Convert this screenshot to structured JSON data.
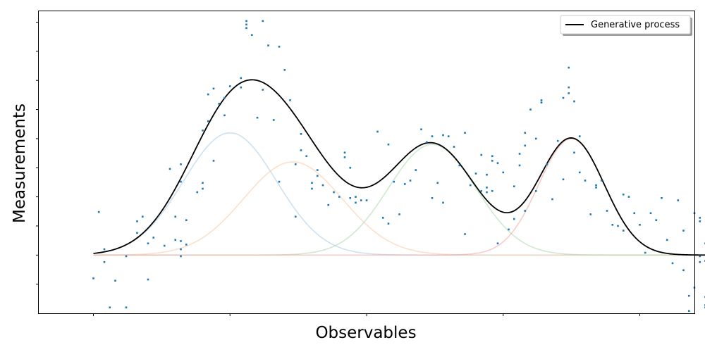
{
  "chart_data": {
    "type": "scatter",
    "xlabel": "Observables",
    "ylabel": "Measurements",
    "xlim": [
      -0.1,
      1.1
    ],
    "ylim": [
      -0.5,
      2.1
    ],
    "tick_labels_visible": false,
    "legend": {
      "entries": [
        "Generative process"
      ],
      "position": "top-right"
    },
    "colors": {
      "points": "#1f77b4",
      "process": "#000000",
      "components": [
        "#aecde3",
        "#fbc9a7",
        "#b0d9b0",
        "#f3a8a8"
      ]
    },
    "components": [
      {
        "weight": 1.05,
        "mean": 0.25,
        "sd": 0.085
      },
      {
        "weight": 0.8,
        "mean": 0.365,
        "sd": 0.09
      },
      {
        "weight": 0.95,
        "mean": 0.62,
        "sd": 0.08
      },
      {
        "weight": 1.0,
        "mean": 0.875,
        "sd": 0.06
      }
    ],
    "process_line": {
      "name": "Generative process",
      "x_range": [
        0,
        1.125
      ]
    },
    "points": [
      [
        0.0,
        -0.2
      ],
      [
        0.01,
        0.37
      ],
      [
        0.02,
        0.05
      ],
      [
        0.02,
        -0.06
      ],
      [
        0.03,
        -0.45
      ],
      [
        0.04,
        -0.22
      ],
      [
        0.06,
        -0.45
      ],
      [
        0.06,
        -0.01
      ],
      [
        0.08,
        0.19
      ],
      [
        0.08,
        0.29
      ],
      [
        0.09,
        0.33
      ],
      [
        0.1,
        0.1
      ],
      [
        0.1,
        -0.21
      ],
      [
        0.11,
        0.15
      ],
      [
        0.13,
        0.08
      ],
      [
        0.14,
        0.74
      ],
      [
        0.15,
        0.13
      ],
      [
        0.15,
        0.33
      ],
      [
        0.16,
        0.05
      ],
      [
        0.16,
        0.12
      ],
      [
        0.16,
        0.78
      ],
      [
        0.16,
        0.63
      ],
      [
        0.16,
        -0.01
      ],
      [
        0.17,
        0.3
      ],
      [
        0.17,
        0.09
      ],
      [
        0.19,
        0.54
      ],
      [
        0.2,
        0.57
      ],
      [
        0.2,
        0.62
      ],
      [
        0.2,
        1.07
      ],
      [
        0.21,
        1.15
      ],
      [
        0.21,
        1.38
      ],
      [
        0.22,
        1.43
      ],
      [
        0.22,
        0.81
      ],
      [
        0.23,
        1.3
      ],
      [
        0.24,
        1.2
      ],
      [
        0.24,
        1.35
      ],
      [
        0.25,
        1.45
      ],
      [
        0.27,
        1.52
      ],
      [
        0.27,
        1.44
      ],
      [
        0.28,
        1.98
      ],
      [
        0.28,
        1.95
      ],
      [
        0.28,
        2.01
      ],
      [
        0.29,
        1.89
      ],
      [
        0.3,
        1.18
      ],
      [
        0.31,
        1.42
      ],
      [
        0.31,
        2.01
      ],
      [
        0.32,
        1.8
      ],
      [
        0.33,
        1.16
      ],
      [
        0.34,
        0.63
      ],
      [
        0.34,
        1.79
      ],
      [
        0.35,
        1.59
      ],
      [
        0.36,
        1.33
      ],
      [
        0.37,
        0.78
      ],
      [
        0.37,
        0.33
      ],
      [
        0.38,
        0.9
      ],
      [
        0.38,
        1.04
      ],
      [
        0.39,
        0.85
      ],
      [
        0.4,
        0.62
      ],
      [
        0.4,
        0.57
      ],
      [
        0.41,
        0.68
      ],
      [
        0.41,
        0.73
      ],
      [
        0.42,
        0.6
      ],
      [
        0.43,
        0.43
      ],
      [
        0.44,
        0.54
      ],
      [
        0.45,
        0.5
      ],
      [
        0.46,
        0.88
      ],
      [
        0.46,
        0.84
      ],
      [
        0.47,
        0.75
      ],
      [
        0.47,
        0.49
      ],
      [
        0.48,
        0.45
      ],
      [
        0.48,
        0.5
      ],
      [
        0.49,
        0.47
      ],
      [
        0.5,
        0.47
      ],
      [
        0.52,
        1.06
      ],
      [
        0.53,
        0.32
      ],
      [
        0.54,
        0.95
      ],
      [
        0.54,
        0.27
      ],
      [
        0.55,
        0.63
      ],
      [
        0.56,
        0.35
      ],
      [
        0.57,
        0.61
      ],
      [
        0.58,
        0.64
      ],
      [
        0.59,
        0.73
      ],
      [
        0.6,
        1.08
      ],
      [
        0.61,
        0.97
      ],
      [
        0.62,
        0.49
      ],
      [
        0.62,
        1.02
      ],
      [
        0.63,
        0.62
      ],
      [
        0.64,
        0.45
      ],
      [
        0.64,
        1.03
      ],
      [
        0.65,
        1.02
      ],
      [
        0.66,
        0.93
      ],
      [
        0.67,
        0.77
      ],
      [
        0.68,
        1.05
      ],
      [
        0.68,
        0.18
      ],
      [
        0.69,
        0.6
      ],
      [
        0.7,
        0.7
      ],
      [
        0.71,
        0.55
      ],
      [
        0.71,
        0.86
      ],
      [
        0.72,
        0.58
      ],
      [
        0.72,
        0.69
      ],
      [
        0.72,
        0.54
      ],
      [
        0.73,
        0.55
      ],
      [
        0.73,
        0.85
      ],
      [
        0.73,
        0.81
      ],
      [
        0.74,
        0.1
      ],
      [
        0.74,
        0.79
      ],
      [
        0.75,
        0.71
      ],
      [
        0.76,
        0.22
      ],
      [
        0.77,
        0.31
      ],
      [
        0.77,
        0.59
      ],
      [
        0.78,
        0.87
      ],
      [
        0.78,
        0.77
      ],
      [
        0.79,
        0.38
      ],
      [
        0.79,
        1.05
      ],
      [
        0.79,
        0.94
      ],
      [
        0.8,
        1.25
      ],
      [
        0.81,
        1.0
      ],
      [
        0.81,
        0.55
      ],
      [
        0.82,
        1.31
      ],
      [
        0.82,
        1.33
      ],
      [
        0.83,
        0.78
      ],
      [
        0.84,
        0.48
      ],
      [
        0.85,
        0.98
      ],
      [
        0.86,
        1.35
      ],
      [
        0.86,
        0.65
      ],
      [
        0.87,
        1.44
      ],
      [
        0.87,
        1.61
      ],
      [
        0.87,
        1.39
      ],
      [
        0.88,
        1.32
      ],
      [
        0.88,
        0.88
      ],
      [
        0.89,
        0.71
      ],
      [
        0.89,
        1.02
      ],
      [
        0.9,
        0.64
      ],
      [
        0.91,
        0.35
      ],
      [
        0.92,
        0.6
      ],
      [
        0.92,
        0.58
      ],
      [
        0.93,
        0.64
      ],
      [
        0.94,
        0.38
      ],
      [
        0.95,
        0.26
      ],
      [
        0.96,
        0.25
      ],
      [
        0.97,
        0.52
      ],
      [
        0.97,
        0.21
      ],
      [
        0.98,
        0.5
      ],
      [
        0.99,
        0.36
      ],
      [
        1.0,
        0.26
      ],
      [
        1.01,
        0.02
      ],
      [
        1.02,
        0.36
      ],
      [
        1.03,
        0.3
      ],
      [
        1.04,
        0.49
      ],
      [
        1.05,
        0.13
      ],
      [
        1.06,
        -0.07
      ],
      [
        1.07,
        0.47
      ],
      [
        1.08,
        0.21
      ],
      [
        1.08,
        -0.13
      ],
      [
        1.09,
        -0.35
      ],
      [
        1.1,
        -0.28
      ],
      [
        1.11,
        -0.01
      ],
      [
        1.11,
        0.32
      ],
      [
        1.12,
        -0.36
      ],
      [
        1.12,
        0.1
      ],
      [
        1.12,
        -0.05
      ],
      [
        1.12,
        -0.45
      ],
      [
        1.12,
        -0.43
      ],
      [
        1.11,
        0.29
      ],
      [
        1.1,
        0.36
      ],
      [
        1.09,
        -0.48
      ],
      [
        1.11,
        -0.06
      ]
    ]
  }
}
